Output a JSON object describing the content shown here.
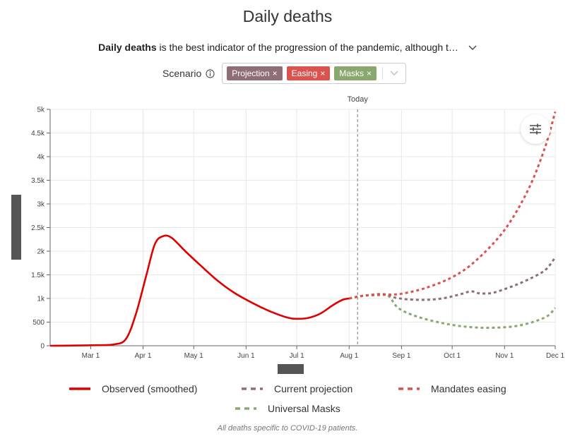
{
  "title": "Daily deaths",
  "description": {
    "bold": "Daily deaths",
    "rest": " is the best indicator of the progression of the pandemic, although t…"
  },
  "scenario": {
    "label": "Scenario",
    "tags": [
      {
        "label": "Projection",
        "color": "#8f6e78"
      },
      {
        "label": "Easing",
        "color": "#d9534f"
      },
      {
        "label": "Masks",
        "color": "#89a86d"
      }
    ]
  },
  "footnote": "All deaths specific to COVID-19 patients.",
  "today_label": "Today",
  "icons": [
    "info-icon",
    "chevron-down-icon",
    "close-icon",
    "sliders-icon"
  ],
  "chart_data": {
    "type": "line",
    "title": "Daily deaths",
    "xlabel": "",
    "ylabel": "",
    "xlim": [
      "2020-02-06",
      "2020-12-01"
    ],
    "ylim": [
      0,
      5000
    ],
    "x_ticks": [
      {
        "date": "2020-03-01",
        "label": "Mar 1"
      },
      {
        "date": "2020-04-01",
        "label": "Apr 1"
      },
      {
        "date": "2020-05-01",
        "label": "May 1"
      },
      {
        "date": "2020-06-01",
        "label": "Jun 1"
      },
      {
        "date": "2020-07-01",
        "label": "Jul 1"
      },
      {
        "date": "2020-08-01",
        "label": "Aug 1"
      },
      {
        "date": "2020-09-01",
        "label": "Sep 1"
      },
      {
        "date": "2020-10-01",
        "label": "Oct 1"
      },
      {
        "date": "2020-11-01",
        "label": "Nov 1"
      },
      {
        "date": "2020-12-01",
        "label": "Dec 1"
      }
    ],
    "y_ticks": [
      {
        "value": 0,
        "label": "0"
      },
      {
        "value": 500,
        "label": "500"
      },
      {
        "value": 1000,
        "label": "1k"
      },
      {
        "value": 1500,
        "label": "1.5k"
      },
      {
        "value": 2000,
        "label": "2k"
      },
      {
        "value": 2500,
        "label": "2.5k"
      },
      {
        "value": 3000,
        "label": "3k"
      },
      {
        "value": 3500,
        "label": "3.5k"
      },
      {
        "value": 4000,
        "label": "4k"
      },
      {
        "value": 4500,
        "label": "4.5k"
      },
      {
        "value": 5000,
        "label": "5k"
      }
    ],
    "grid": true,
    "today": "2020-08-06",
    "legend_position": "bottom",
    "series": [
      {
        "name": "Observed (smoothed)",
        "color": "#e00000",
        "style": "solid",
        "points": [
          [
            "2020-02-06",
            0
          ],
          [
            "2020-03-01",
            10
          ],
          [
            "2020-03-15",
            30
          ],
          [
            "2020-03-22",
            150
          ],
          [
            "2020-03-28",
            700
          ],
          [
            "2020-04-03",
            1500
          ],
          [
            "2020-04-08",
            2150
          ],
          [
            "2020-04-13",
            2320
          ],
          [
            "2020-04-18",
            2280
          ],
          [
            "2020-04-26",
            2000
          ],
          [
            "2020-05-05",
            1700
          ],
          [
            "2020-05-15",
            1380
          ],
          [
            "2020-05-25",
            1120
          ],
          [
            "2020-06-05",
            900
          ],
          [
            "2020-06-15",
            730
          ],
          [
            "2020-06-25",
            600
          ],
          [
            "2020-07-01",
            570
          ],
          [
            "2020-07-08",
            590
          ],
          [
            "2020-07-15",
            680
          ],
          [
            "2020-07-22",
            850
          ],
          [
            "2020-07-28",
            970
          ],
          [
            "2020-08-01",
            1000
          ]
        ]
      },
      {
        "name": "Current projection",
        "color": "#8f6e78",
        "style": "dashed",
        "points": [
          [
            "2020-08-01",
            1000
          ],
          [
            "2020-08-10",
            1060
          ],
          [
            "2020-08-23",
            1080
          ],
          [
            "2020-08-28",
            1020
          ],
          [
            "2020-09-05",
            980
          ],
          [
            "2020-09-15",
            970
          ],
          [
            "2020-09-25",
            1000
          ],
          [
            "2020-10-05",
            1080
          ],
          [
            "2020-10-12",
            1150
          ],
          [
            "2020-10-17",
            1110
          ],
          [
            "2020-10-25",
            1120
          ],
          [
            "2020-11-05",
            1250
          ],
          [
            "2020-11-15",
            1400
          ],
          [
            "2020-11-25",
            1600
          ],
          [
            "2020-12-01",
            1870
          ]
        ]
      },
      {
        "name": "Mandates easing",
        "color": "#d9534f",
        "style": "dashed",
        "points": [
          [
            "2020-08-01",
            1000
          ],
          [
            "2020-08-10",
            1060
          ],
          [
            "2020-08-23",
            1080
          ],
          [
            "2020-09-01",
            1100
          ],
          [
            "2020-09-15",
            1220
          ],
          [
            "2020-10-01",
            1450
          ],
          [
            "2020-10-15",
            1800
          ],
          [
            "2020-11-01",
            2450
          ],
          [
            "2020-11-15",
            3300
          ],
          [
            "2020-11-25",
            4200
          ],
          [
            "2020-12-01",
            4950
          ]
        ]
      },
      {
        "name": "Universal Masks",
        "color": "#89a86d",
        "style": "dashed",
        "points": [
          [
            "2020-08-01",
            1000
          ],
          [
            "2020-08-10",
            1060
          ],
          [
            "2020-08-23",
            1080
          ],
          [
            "2020-08-30",
            800
          ],
          [
            "2020-09-10",
            620
          ],
          [
            "2020-09-25",
            480
          ],
          [
            "2020-10-10",
            400
          ],
          [
            "2020-10-25",
            380
          ],
          [
            "2020-11-10",
            430
          ],
          [
            "2020-11-25",
            600
          ],
          [
            "2020-12-01",
            800
          ]
        ]
      }
    ]
  }
}
